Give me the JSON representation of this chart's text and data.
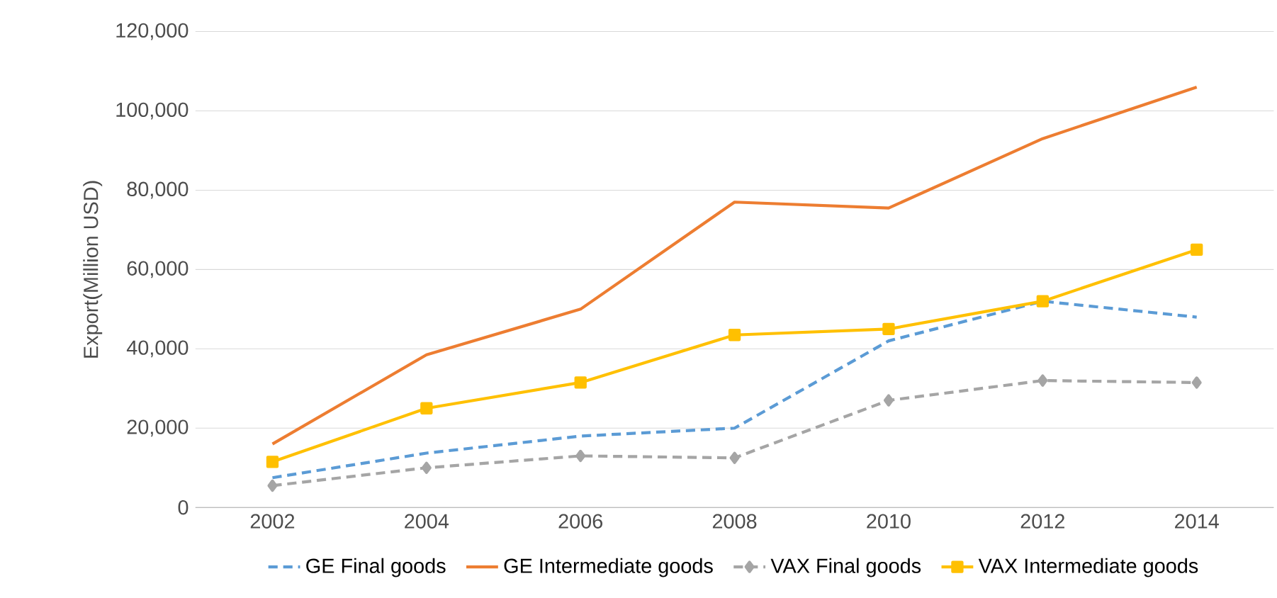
{
  "chart_data": {
    "type": "line",
    "ylabel": "Export(Million USD)",
    "categories": [
      "2002",
      "2004",
      "2006",
      "2008",
      "2010",
      "2012",
      "2014"
    ],
    "series": [
      {
        "name": "GE Final goods",
        "color": "#5b9bd5",
        "line_style": "dashed",
        "marker": "none",
        "values": [
          7500,
          13700,
          18000,
          20000,
          42000,
          52000,
          48000
        ]
      },
      {
        "name": "GE Intermediate goods",
        "color": "#ed7d31",
        "line_style": "solid",
        "marker": "none",
        "values": [
          16000,
          38500,
          50000,
          77000,
          75500,
          93000,
          106000
        ]
      },
      {
        "name": "VAX Final goods",
        "color": "#a5a5a5",
        "line_style": "dashed",
        "marker": "diamond",
        "values": [
          5500,
          10000,
          13000,
          12500,
          27000,
          32000,
          31500
        ]
      },
      {
        "name": "VAX Intermediate goods",
        "color": "#ffc000",
        "line_style": "solid",
        "marker": "square",
        "values": [
          11500,
          25000,
          31500,
          43500,
          45000,
          52000,
          65000
        ]
      }
    ],
    "ylim": [
      0,
      120000
    ],
    "yticks": [
      0,
      {
        "value": 20000,
        "label": "20,000"
      },
      {
        "value": 40000,
        "label": "40,000"
      },
      {
        "value": 60000,
        "label": "60,000"
      },
      {
        "value": 80000,
        "label": "80,000"
      },
      {
        "value": 100000,
        "label": "100,000"
      },
      {
        "value": 120000,
        "label": "120,000"
      }
    ],
    "grid": "y",
    "legend": "bottom"
  }
}
